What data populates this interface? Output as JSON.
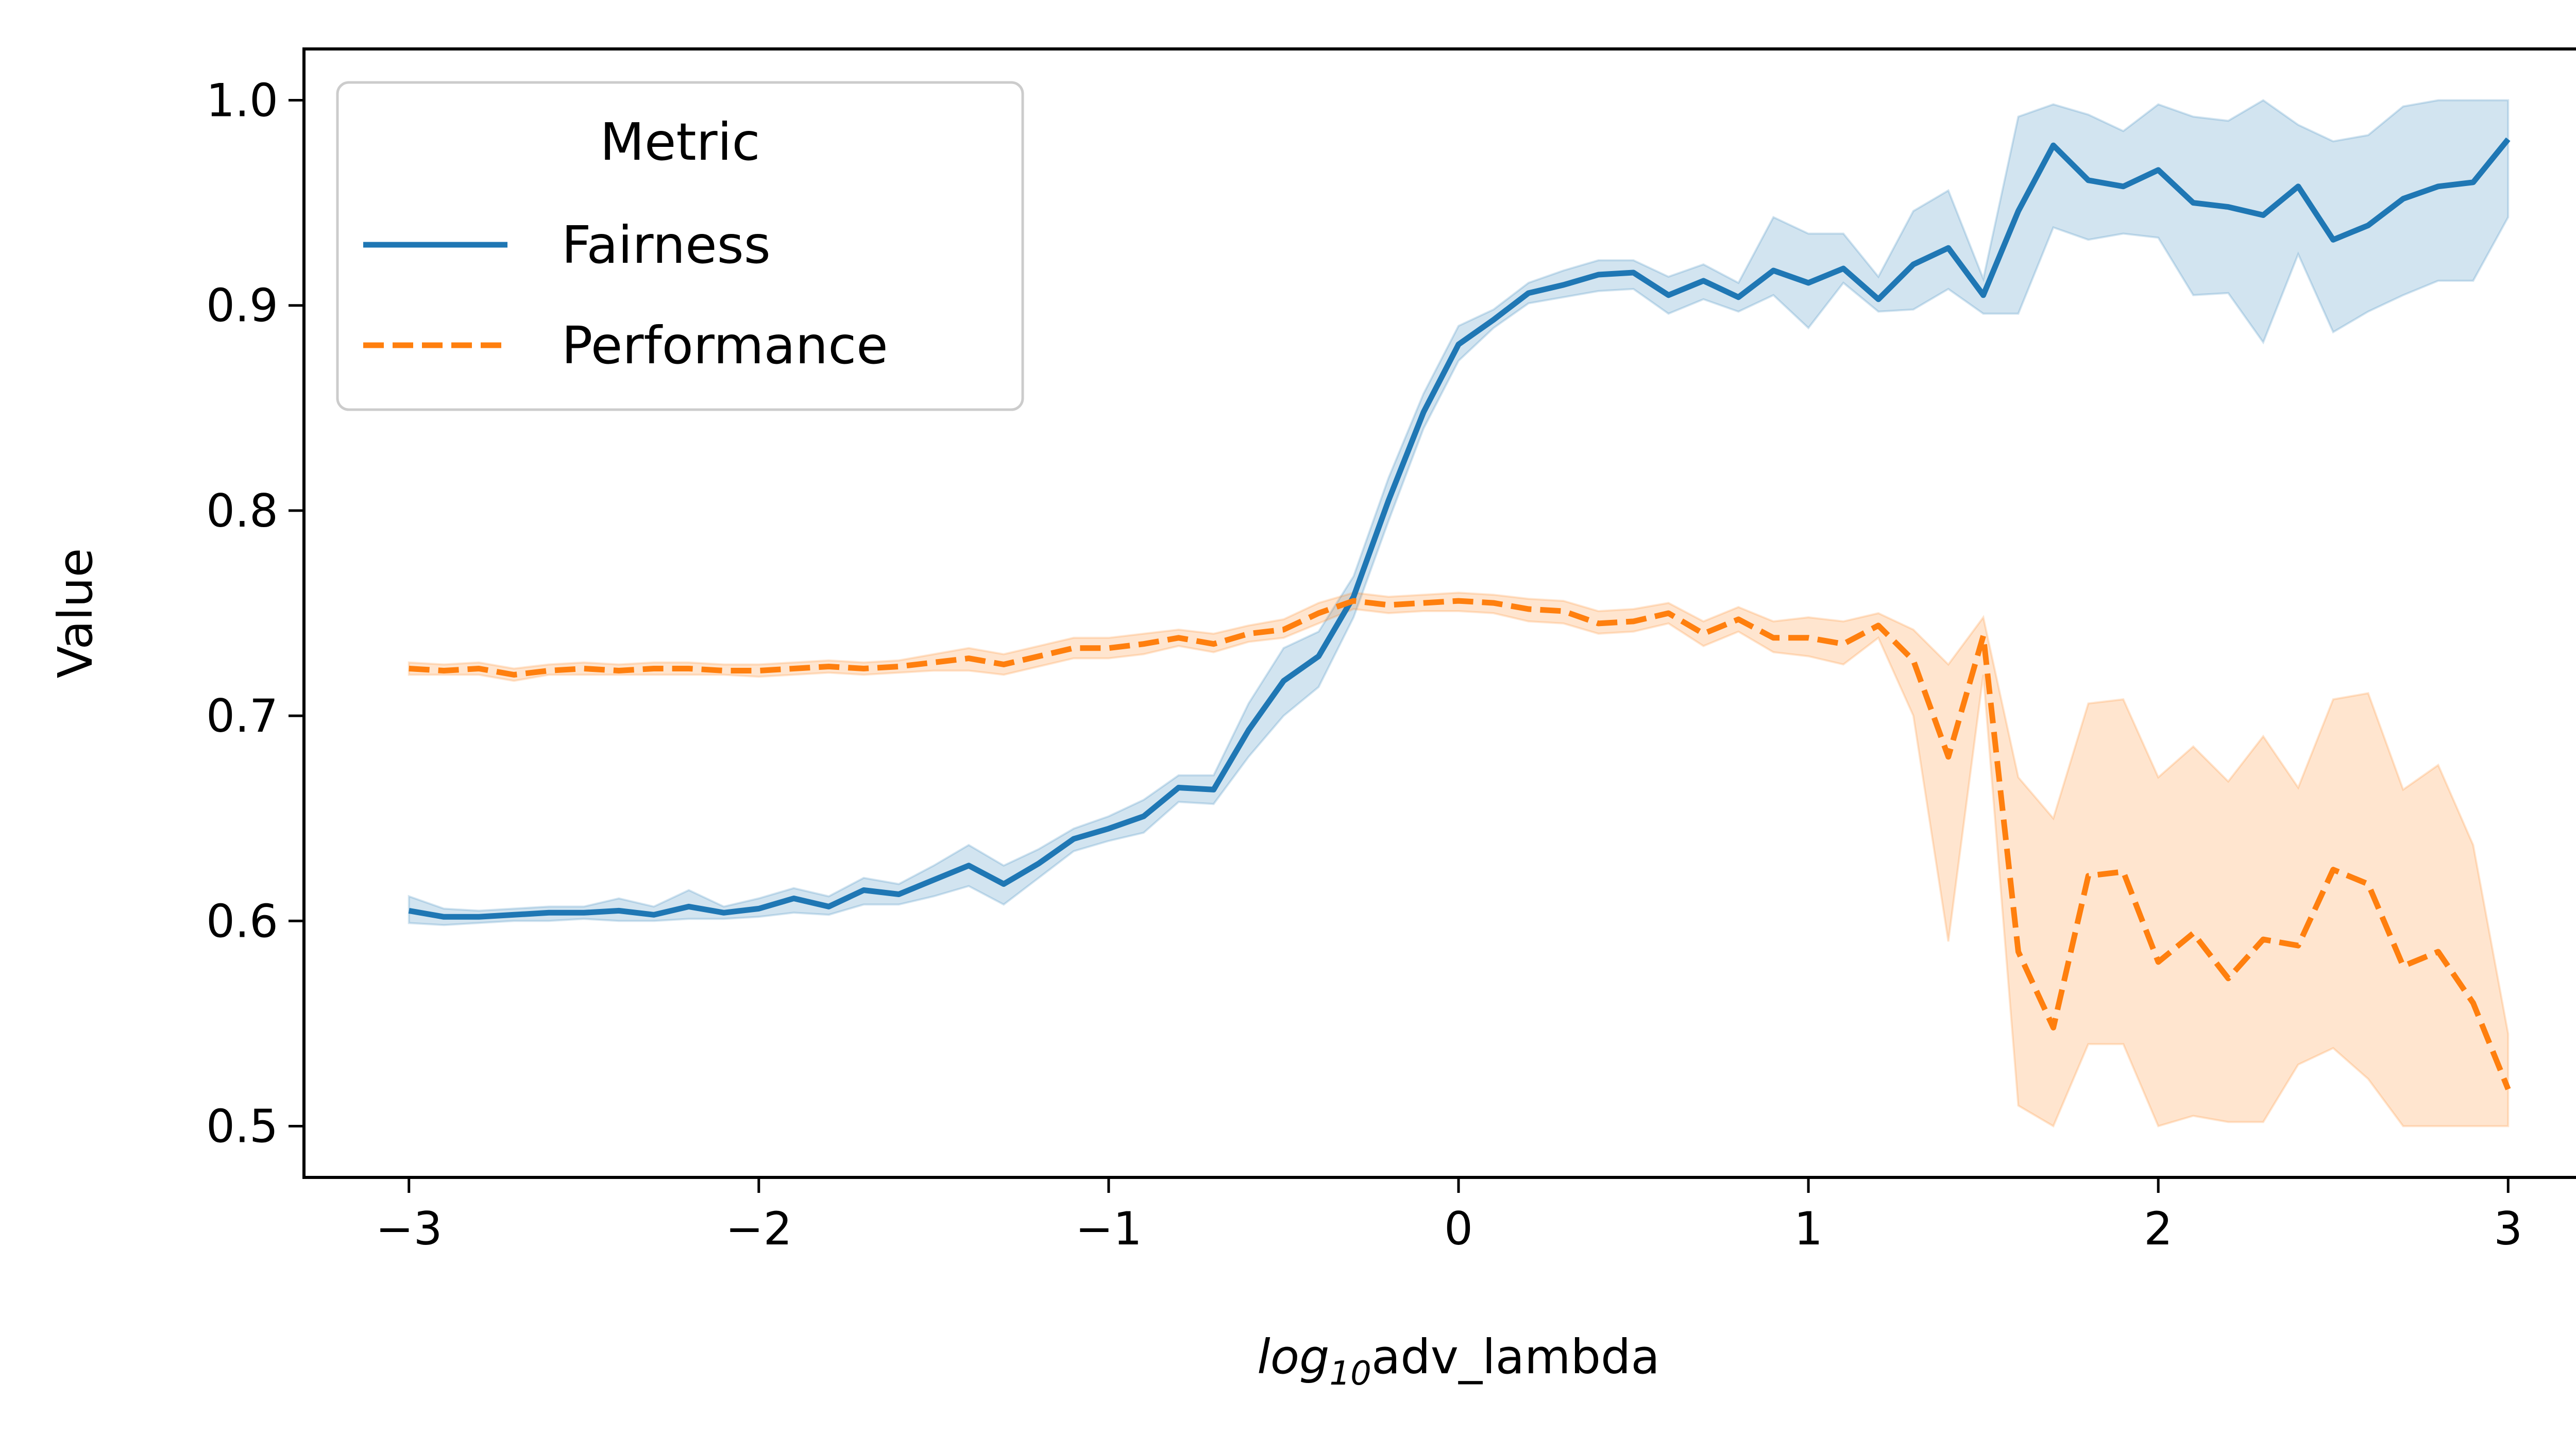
{
  "chart_data": {
    "type": "line",
    "xlabel_prefix": "log",
    "xlabel_subscript": "10",
    "xlabel_suffix": "adv_lambda",
    "ylabel": "Value",
    "xlim": [
      -3.3,
      3.3
    ],
    "ylim": [
      0.475,
      1.025
    ],
    "x_ticks": [
      -3,
      -2,
      -1,
      0,
      1,
      2,
      3
    ],
    "x_tick_labels": [
      "−3",
      "−2",
      "−1",
      "0",
      "1",
      "2",
      "3"
    ],
    "y_ticks": [
      0.5,
      0.6,
      0.7,
      0.8,
      0.9,
      1.0
    ],
    "y_tick_labels": [
      "0.5",
      "0.6",
      "0.7",
      "0.8",
      "0.9",
      "1.0"
    ],
    "grid": false,
    "legend": {
      "title": "Metric",
      "placement": "upper-left",
      "entries": [
        "Fairness",
        "Performance"
      ]
    },
    "x": [
      -3.0,
      -2.9,
      -2.8,
      -2.7,
      -2.6,
      -2.5,
      -2.4,
      -2.3,
      -2.2,
      -2.1,
      -2.0,
      -1.9,
      -1.8,
      -1.7,
      -1.6,
      -1.5,
      -1.4,
      -1.3,
      -1.2,
      -1.1,
      -1.0,
      -0.9,
      -0.8,
      -0.7,
      -0.6,
      -0.5,
      -0.4,
      -0.3,
      -0.2,
      -0.1,
      0.0,
      0.1,
      0.2,
      0.3,
      0.4,
      0.5,
      0.6,
      0.7,
      0.8,
      0.9,
      1.0,
      1.1,
      1.2,
      1.3,
      1.4,
      1.5,
      1.6,
      1.7,
      1.8,
      1.9,
      2.0,
      2.1,
      2.2,
      2.3,
      2.4,
      2.5,
      2.6,
      2.7,
      2.8,
      2.9,
      3.0
    ],
    "series": [
      {
        "name": "Fairness",
        "color": "#1f77b4",
        "band_color": "#1f77b4",
        "line_style": "solid",
        "values": [
          0.605,
          0.602,
          0.602,
          0.603,
          0.604,
          0.604,
          0.605,
          0.603,
          0.607,
          0.604,
          0.606,
          0.611,
          0.607,
          0.615,
          0.613,
          0.62,
          0.627,
          0.618,
          0.628,
          0.64,
          0.645,
          0.651,
          0.665,
          0.664,
          0.693,
          0.717,
          0.729,
          0.758,
          0.805,
          0.848,
          0.881,
          0.893,
          0.906,
          0.91,
          0.915,
          0.916,
          0.905,
          0.912,
          0.904,
          0.917,
          0.911,
          0.918,
          0.903,
          0.92,
          0.928,
          0.905,
          0.946,
          0.978,
          0.961,
          0.958,
          0.966,
          0.95,
          0.948,
          0.944,
          0.958,
          0.932,
          0.939,
          0.952,
          0.958,
          0.96,
          0.981
        ],
        "lower": [
          0.599,
          0.598,
          0.599,
          0.6,
          0.6,
          0.601,
          0.6,
          0.6,
          0.601,
          0.601,
          0.602,
          0.604,
          0.603,
          0.608,
          0.608,
          0.612,
          0.617,
          0.608,
          0.621,
          0.634,
          0.639,
          0.643,
          0.658,
          0.657,
          0.68,
          0.7,
          0.714,
          0.748,
          0.795,
          0.84,
          0.873,
          0.889,
          0.901,
          0.904,
          0.907,
          0.908,
          0.896,
          0.903,
          0.897,
          0.905,
          0.889,
          0.911,
          0.897,
          0.898,
          0.908,
          0.896,
          0.896,
          0.938,
          0.932,
          0.935,
          0.933,
          0.905,
          0.906,
          0.882,
          0.925,
          0.887,
          0.897,
          0.905,
          0.912,
          0.912,
          0.943
        ],
        "upper": [
          0.612,
          0.606,
          0.605,
          0.606,
          0.607,
          0.607,
          0.611,
          0.607,
          0.615,
          0.607,
          0.611,
          0.616,
          0.612,
          0.621,
          0.618,
          0.627,
          0.637,
          0.627,
          0.635,
          0.645,
          0.651,
          0.659,
          0.671,
          0.671,
          0.706,
          0.733,
          0.741,
          0.768,
          0.816,
          0.857,
          0.89,
          0.898,
          0.911,
          0.917,
          0.922,
          0.922,
          0.914,
          0.92,
          0.911,
          0.943,
          0.935,
          0.935,
          0.914,
          0.946,
          0.956,
          0.913,
          0.992,
          0.998,
          0.993,
          0.985,
          0.998,
          0.992,
          0.99,
          1.0,
          0.988,
          0.98,
          0.983,
          0.997,
          1.0,
          1.0,
          1.0
        ]
      },
      {
        "name": "Performance",
        "color": "#ff7f0e",
        "band_color": "#ff7f0e",
        "line_style": "dashed",
        "values": [
          0.723,
          0.722,
          0.723,
          0.72,
          0.722,
          0.723,
          0.722,
          0.723,
          0.723,
          0.722,
          0.722,
          0.723,
          0.724,
          0.723,
          0.724,
          0.726,
          0.728,
          0.725,
          0.729,
          0.733,
          0.733,
          0.735,
          0.738,
          0.735,
          0.74,
          0.742,
          0.75,
          0.756,
          0.754,
          0.755,
          0.756,
          0.755,
          0.752,
          0.751,
          0.745,
          0.746,
          0.75,
          0.74,
          0.747,
          0.738,
          0.738,
          0.735,
          0.744,
          0.727,
          0.68,
          0.739,
          0.585,
          0.548,
          0.622,
          0.624,
          0.58,
          0.594,
          0.572,
          0.591,
          0.588,
          0.625,
          0.618,
          0.578,
          0.585,
          0.56,
          0.518
        ],
        "lower": [
          0.72,
          0.72,
          0.72,
          0.717,
          0.72,
          0.72,
          0.72,
          0.72,
          0.72,
          0.72,
          0.719,
          0.72,
          0.721,
          0.72,
          0.721,
          0.722,
          0.722,
          0.72,
          0.724,
          0.728,
          0.728,
          0.73,
          0.734,
          0.731,
          0.736,
          0.738,
          0.745,
          0.752,
          0.75,
          0.751,
          0.751,
          0.75,
          0.746,
          0.745,
          0.74,
          0.741,
          0.745,
          0.734,
          0.741,
          0.731,
          0.729,
          0.725,
          0.738,
          0.7,
          0.59,
          0.72,
          0.51,
          0.5,
          0.54,
          0.54,
          0.5,
          0.505,
          0.502,
          0.502,
          0.53,
          0.538,
          0.523,
          0.5,
          0.5,
          0.5,
          0.5
        ],
        "upper": [
          0.726,
          0.725,
          0.726,
          0.723,
          0.725,
          0.726,
          0.725,
          0.726,
          0.726,
          0.725,
          0.725,
          0.726,
          0.727,
          0.726,
          0.727,
          0.73,
          0.733,
          0.73,
          0.734,
          0.738,
          0.738,
          0.74,
          0.742,
          0.74,
          0.744,
          0.747,
          0.755,
          0.76,
          0.758,
          0.759,
          0.76,
          0.759,
          0.757,
          0.756,
          0.751,
          0.752,
          0.755,
          0.746,
          0.753,
          0.746,
          0.748,
          0.746,
          0.75,
          0.742,
          0.725,
          0.748,
          0.67,
          0.65,
          0.706,
          0.708,
          0.67,
          0.685,
          0.668,
          0.69,
          0.665,
          0.708,
          0.711,
          0.664,
          0.676,
          0.637,
          0.545
        ]
      }
    ]
  }
}
